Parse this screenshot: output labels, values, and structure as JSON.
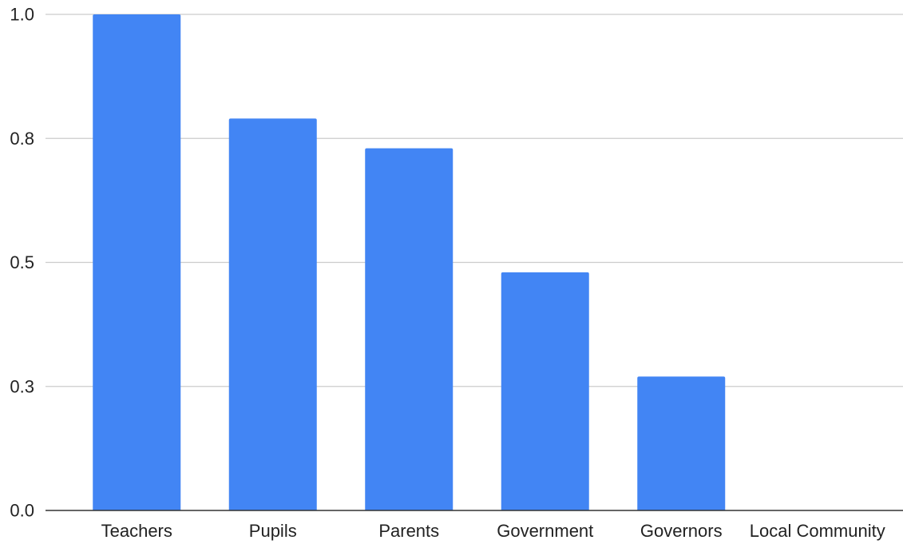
{
  "chart_data": {
    "type": "bar",
    "title": "",
    "xlabel": "",
    "ylabel": "",
    "categories": [
      "Teachers",
      "Pupils",
      "Parents",
      "Government",
      "Governors",
      "Local Community"
    ],
    "values": [
      1.0,
      0.79,
      0.73,
      0.48,
      0.27,
      0.0
    ],
    "ylim": [
      0,
      1.0
    ],
    "yticks": [
      0.0,
      0.25,
      0.5,
      0.75,
      1.0
    ],
    "ytick_labels": [
      "0.0",
      "0.3",
      "0.5",
      "0.8",
      "1.0"
    ],
    "grid": true,
    "legend": "none",
    "bar_color": "#4285f4"
  }
}
